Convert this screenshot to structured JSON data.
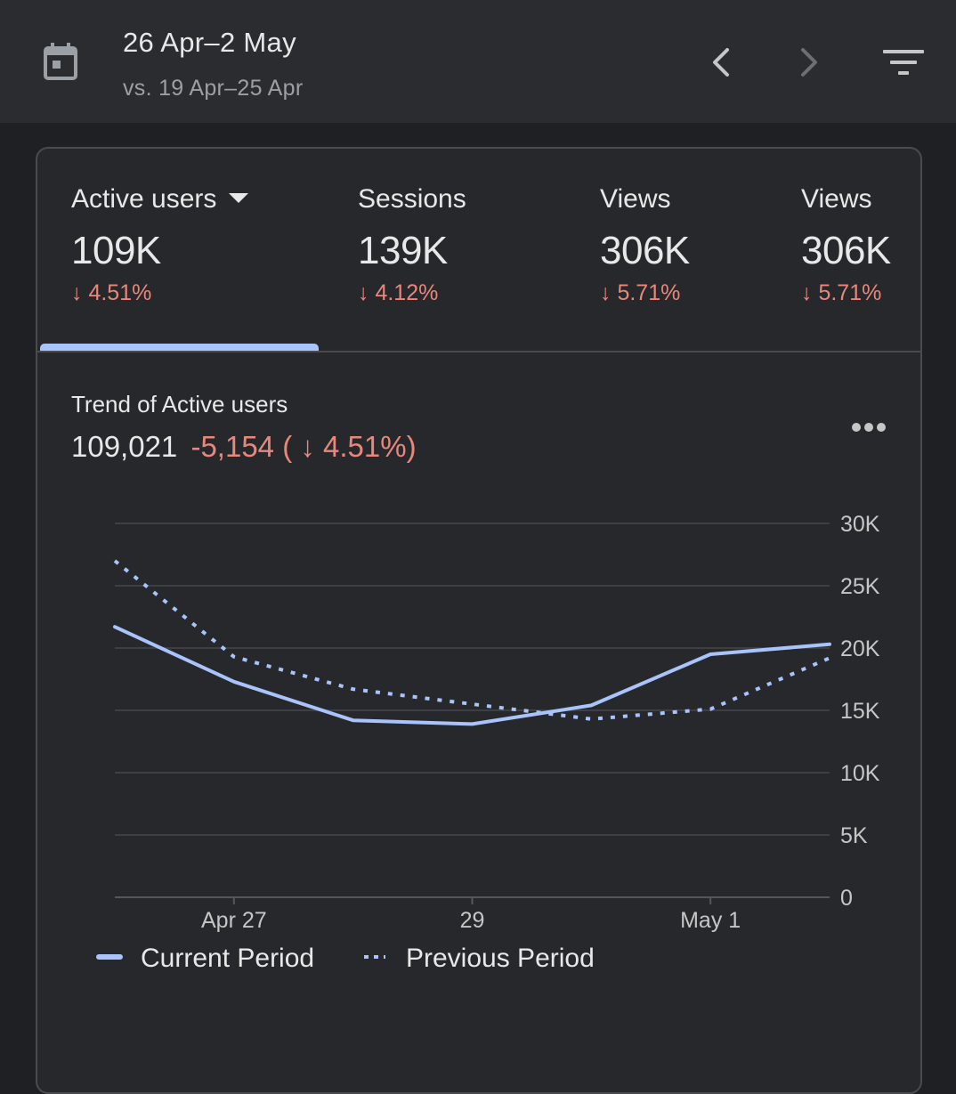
{
  "header": {
    "date_range": "26 Apr–2 May",
    "comparison": "vs. 19 Apr–25 Apr",
    "icons": {
      "calendar": "calendar-icon",
      "prev": "chevron-left-icon",
      "next": "chevron-right-icon",
      "filter": "filter-icon"
    }
  },
  "metrics": [
    {
      "label": "Active users",
      "value": "109K",
      "change": "↓ 4.51%",
      "selected": true
    },
    {
      "label": "Sessions",
      "value": "139K",
      "change": "↓ 4.12%"
    },
    {
      "label": "Views",
      "value": "306K",
      "change": "↓ 5.71%"
    },
    {
      "label": "Views",
      "value": "306K",
      "change": "↓ 5.71%"
    }
  ],
  "trend": {
    "title": "Trend of Active users",
    "total": "109,021",
    "delta": "-5,154 ( ↓ 4.51%)"
  },
  "colors": {
    "accent": "#a8c4fb",
    "negative": "#e8877c",
    "background": "#1f2023",
    "card": "#27282b"
  },
  "chart_data": {
    "type": "line",
    "x": [
      "Apr 26",
      "Apr 27",
      "Apr 28",
      "Apr 29",
      "Apr 30",
      "May 1",
      "May 2"
    ],
    "x_tick_labels": [
      {
        "at": "Apr 27",
        "label": "Apr 27"
      },
      {
        "at": "Apr 29",
        "label": "29"
      },
      {
        "at": "May 1",
        "label": "May 1"
      }
    ],
    "y_ticks": [
      "0",
      "5K",
      "10K",
      "15K",
      "20K",
      "25K",
      "30K"
    ],
    "ylim": [
      0,
      30000
    ],
    "y_axis_side": "right",
    "grid": true,
    "legend_position": "bottom-left",
    "series": [
      {
        "name": "Current Period",
        "style": "solid",
        "values": [
          21700,
          17300,
          14200,
          13900,
          15400,
          19500,
          20300
        ]
      },
      {
        "name": "Previous Period",
        "style": "dotted",
        "values": [
          27000,
          19300,
          16700,
          15500,
          14300,
          15100,
          19200
        ]
      }
    ]
  }
}
